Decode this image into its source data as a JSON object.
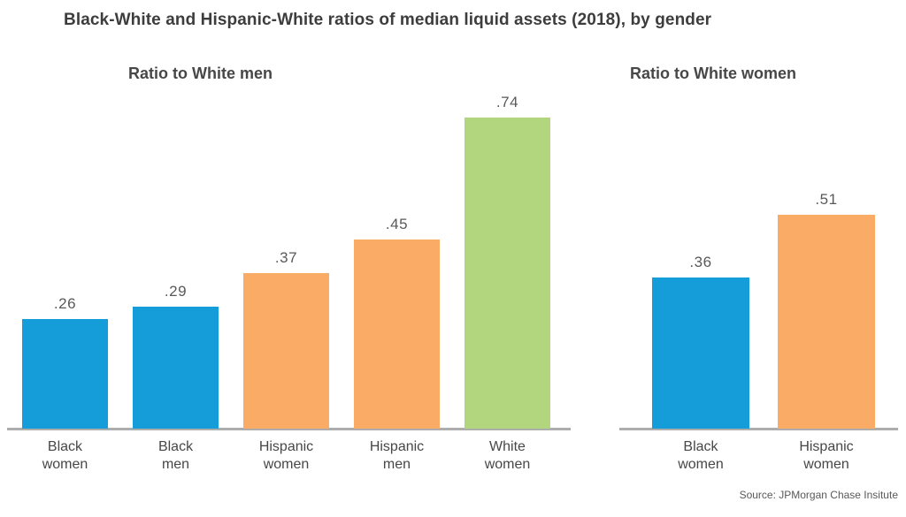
{
  "title": "Black-White and Hispanic-White ratios of median liquid assets (2018), by gender",
  "source": "Source: JPMorgan Chase Insitute",
  "colors": {
    "black_series": "#159DD9",
    "hispanic_series": "#FAAC66",
    "white_series": "#B2D67E",
    "axis_line": "#ADADAD",
    "title_text": "#3D3D3D",
    "value_label_text": "#595959",
    "category_label_text": "#474747"
  },
  "chart_data": [
    {
      "type": "bar",
      "title": "Ratio to White men",
      "categories": [
        "Black\nwomen",
        "Black\nmen",
        "Hispanic\nwomen",
        "Hispanic\nmen",
        "White\nwomen"
      ],
      "values": [
        0.26,
        0.29,
        0.37,
        0.45,
        0.74
      ],
      "value_labels": [
        ".26",
        ".29",
        ".37",
        ".45",
        ".74"
      ],
      "bar_colors": [
        "#159DD9",
        "#159DD9",
        "#FAAC66",
        "#FAAC66",
        "#B2D67E"
      ],
      "ylim": [
        0,
        0.8
      ],
      "grid": false,
      "legend": "none"
    },
    {
      "type": "bar",
      "title": "Ratio to White women",
      "categories": [
        "Black\nwomen",
        "Hispanic\nwomen"
      ],
      "values": [
        0.36,
        0.51
      ],
      "value_labels": [
        ".36",
        ".51"
      ],
      "bar_colors": [
        "#159DD9",
        "#FAAC66"
      ],
      "ylim": [
        0,
        0.8
      ],
      "grid": false,
      "legend": "none"
    }
  ]
}
